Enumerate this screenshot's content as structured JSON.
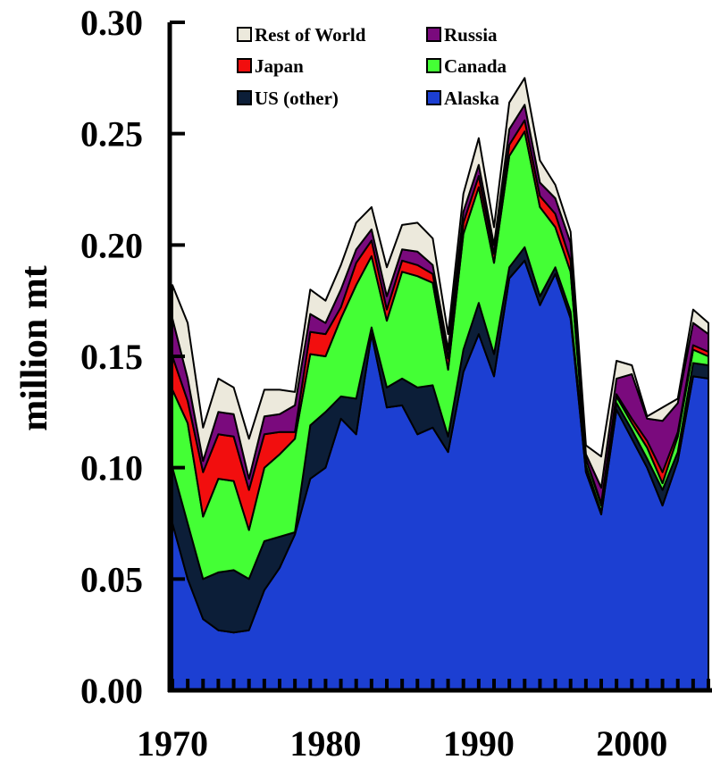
{
  "chart_data": {
    "type": "area",
    "stacked": true,
    "title": "",
    "xlabel": "",
    "ylabel": "million mt",
    "xlim": [
      1970,
      2005
    ],
    "ylim": [
      0,
      0.3
    ],
    "x_ticks": [
      "1970",
      "1980",
      "1990",
      "2000"
    ],
    "y_ticks": [
      "0.00",
      "0.05",
      "0.10",
      "0.15",
      "0.20",
      "0.25",
      "0.30"
    ],
    "x": [
      1970,
      1971,
      1972,
      1973,
      1974,
      1975,
      1976,
      1977,
      1978,
      1979,
      1980,
      1981,
      1982,
      1983,
      1984,
      1985,
      1986,
      1987,
      1988,
      1989,
      1990,
      1991,
      1992,
      1993,
      1994,
      1995,
      1996,
      1997,
      1998,
      1999,
      2000,
      2001,
      2002,
      2003,
      2004,
      2005
    ],
    "series": [
      {
        "name": "Alaska",
        "color": "#1c3fd2",
        "values": [
          0.075,
          0.05,
          0.032,
          0.027,
          0.026,
          0.027,
          0.045,
          0.055,
          0.07,
          0.095,
          0.1,
          0.122,
          0.115,
          0.16,
          0.127,
          0.128,
          0.115,
          0.118,
          0.107,
          0.143,
          0.16,
          0.141,
          0.185,
          0.193,
          0.173,
          0.187,
          0.167,
          0.098,
          0.079,
          0.126,
          0.113,
          0.1,
          0.083,
          0.103,
          0.141,
          0.14
        ]
      },
      {
        "name": "US (other)",
        "color": "#0c1e38",
        "values": [
          0.025,
          0.025,
          0.018,
          0.026,
          0.028,
          0.023,
          0.022,
          0.014,
          0.001,
          0.024,
          0.025,
          0.01,
          0.016,
          0.003,
          0.009,
          0.012,
          0.021,
          0.019,
          0.007,
          0.01,
          0.014,
          0.01,
          0.005,
          0.006,
          0.004,
          0.003,
          0.003,
          0.003,
          0.001,
          0.003,
          0.004,
          0.004,
          0.007,
          0.004,
          0.006,
          0.006
        ]
      },
      {
        "name": "Canada",
        "color": "#44ff35",
        "values": [
          0.035,
          0.045,
          0.028,
          0.042,
          0.04,
          0.022,
          0.033,
          0.037,
          0.042,
          0.032,
          0.025,
          0.035,
          0.051,
          0.032,
          0.03,
          0.048,
          0.05,
          0.046,
          0.03,
          0.052,
          0.052,
          0.041,
          0.05,
          0.052,
          0.04,
          0.018,
          0.018,
          0.003,
          0.003,
          0.003,
          0.003,
          0.005,
          0.003,
          0.007,
          0.006,
          0.004
        ]
      },
      {
        "name": "Japan",
        "color": "#f20e0e",
        "values": [
          0.015,
          0.01,
          0.02,
          0.02,
          0.02,
          0.018,
          0.015,
          0.01,
          0.003,
          0.01,
          0.01,
          0.005,
          0.01,
          0.007,
          0.005,
          0.005,
          0.005,
          0.004,
          0.005,
          0.005,
          0.005,
          0.004,
          0.005,
          0.005,
          0.005,
          0.006,
          0.005,
          0.0,
          0.001,
          0.001,
          0.002,
          0.003,
          0.005,
          0.002,
          0.002,
          0.002
        ]
      },
      {
        "name": "Russia",
        "color": "#7a0a7d",
        "values": [
          0.017,
          0.01,
          0.005,
          0.01,
          0.01,
          0.005,
          0.008,
          0.008,
          0.012,
          0.008,
          0.005,
          0.008,
          0.006,
          0.005,
          0.006,
          0.005,
          0.006,
          0.004,
          0.004,
          0.005,
          0.005,
          0.004,
          0.007,
          0.007,
          0.006,
          0.007,
          0.008,
          0.002,
          0.007,
          0.007,
          0.02,
          0.01,
          0.023,
          0.013,
          0.01,
          0.008
        ]
      },
      {
        "name": "Rest of World",
        "color": "#ece9dc",
        "values": [
          0.015,
          0.025,
          0.015,
          0.015,
          0.012,
          0.018,
          0.012,
          0.011,
          0.006,
          0.011,
          0.01,
          0.011,
          0.012,
          0.01,
          0.013,
          0.011,
          0.013,
          0.012,
          0.007,
          0.008,
          0.012,
          0.008,
          0.012,
          0.012,
          0.01,
          0.006,
          0.005,
          0.004,
          0.014,
          0.008,
          0.004,
          0.001,
          0.006,
          0.002,
          0.006,
          0.005
        ]
      }
    ],
    "legend_order": [
      "Rest of World",
      "Russia",
      "Japan",
      "Canada",
      "US (other)",
      "Alaska"
    ],
    "legend_placement": "top"
  }
}
